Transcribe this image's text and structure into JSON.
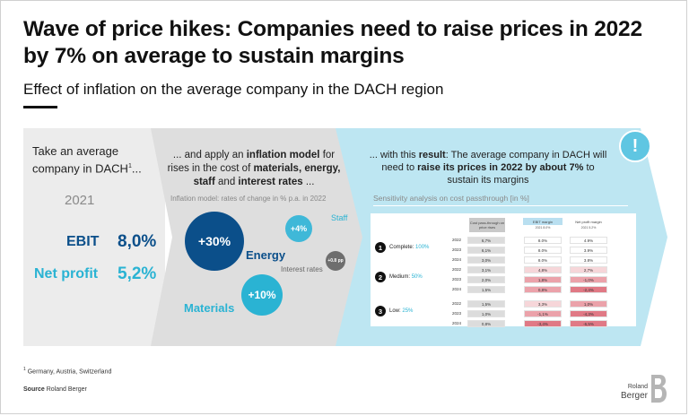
{
  "header": {
    "title": "Wave of price hikes: Companies need to raise prices in 2022 by 7% on average to sustain margins",
    "subtitle": "Effect of inflation on the average company in the DACH region"
  },
  "panel1": {
    "heading_line1": "Take an average",
    "heading_line2": "company in DACH",
    "footnote_mark": "1",
    "heading_suffix": "...",
    "year": "2021",
    "ebit_label": "EBIT",
    "ebit_value": "8,0%",
    "net_label": "Net profit",
    "net_value": "5,2%"
  },
  "panel2": {
    "heading_a": "... and apply an ",
    "heading_b": "inflation model",
    "heading_c": " for rises in the cost of ",
    "heading_d": "materials, energy, staff",
    "heading_e": " and ",
    "heading_f": "interest rates",
    "heading_g": " ...",
    "model_note": "Inflation model: rates of change in % p.a. in 2022",
    "energy_value": "+30%",
    "energy_label": "Energy",
    "staff_value": "+4%",
    "staff_label": "Staff",
    "interest_value": "+0.8 pp",
    "interest_label": "Interest rates",
    "materials_value": "+10%",
    "materials_label": "Materials"
  },
  "panel3": {
    "heading_a": "... with this ",
    "heading_b": "result",
    "heading_c": ": The average company in DACH will need to ",
    "heading_d": "raise its prices in 2022 by about 7%",
    "heading_e": " to sustain its margins",
    "sensitivity_label": "Sensitivity analysis on cost passthrough [in %]",
    "alert_symbol": "!",
    "col_pass": "Cost pass-through on price rises",
    "col_ebit": "EBIT margin",
    "col_ebit_sub": "2021 8.0%",
    "col_net": "Net profit margin",
    "col_net_sub": "2021 5.2%",
    "scenarios": [
      {
        "num": "1",
        "label": "Complete:",
        "pct": "100%",
        "rows": [
          {
            "year": "2022",
            "pass": "6,7%",
            "ebit": "8.0%",
            "net": "4.9%"
          },
          {
            "year": "2023",
            "pass": "6,1%",
            "ebit": "8.0%",
            "net": "3.9%"
          },
          {
            "year": "2024",
            "pass": "3,0%",
            "ebit": "8.0%",
            "net": "3.8%"
          }
        ]
      },
      {
        "num": "2",
        "label": "Medium:",
        "pct": "50%",
        "rows": [
          {
            "year": "2022",
            "pass": "3,1%",
            "ebit": "4,8%",
            "net": "2,7%"
          },
          {
            "year": "2023",
            "pass": "2,0%",
            "ebit": "1,8%",
            "net": "-1,0%"
          },
          {
            "year": "2024",
            "pass": "1,5%",
            "ebit": "0,8%",
            "net": "-2,4%"
          }
        ]
      },
      {
        "num": "3",
        "label": "Low:",
        "pct": "25%",
        "rows": [
          {
            "year": "2022",
            "pass": "1,5%",
            "ebit": "3,3%",
            "net": "1,0%"
          },
          {
            "year": "2023",
            "pass": "1,0%",
            "ebit": "-1,1%",
            "net": "-4,3%"
          },
          {
            "year": "2024",
            "pass": "0,8%",
            "ebit": "-3,4%",
            "net": "-6,5%"
          }
        ]
      }
    ]
  },
  "footer": {
    "footnote": "Germany, Austria, Switzerland",
    "footnote_mark": "1",
    "source_label": "Source",
    "source_value": "Roland Berger",
    "logo_line1": "Roland",
    "logo_line2": "Berger"
  },
  "colors": {
    "navy": "#0b4f8a",
    "cyan": "#2ab3d3",
    "light_cyan_panel": "#bde6f2",
    "grey_panel": "#ececec",
    "grey_chevron": "#dedede"
  }
}
